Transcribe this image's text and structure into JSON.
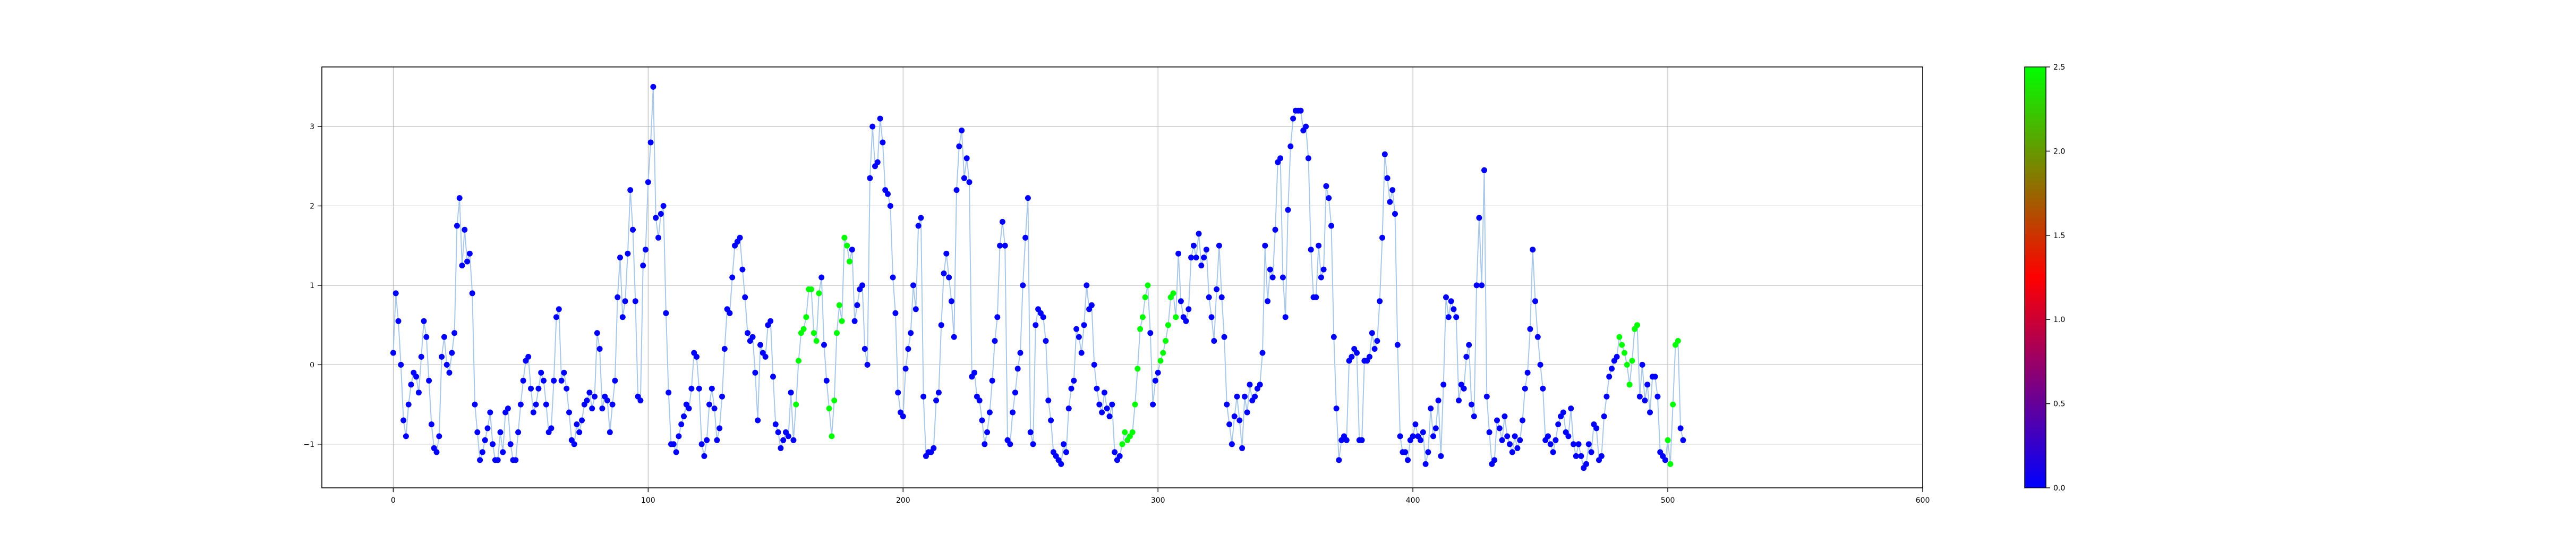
{
  "chart_data": {
    "type": "scatter",
    "title": "",
    "xlabel": "",
    "ylabel": "",
    "xlim": [
      -28,
      600
    ],
    "ylim": [
      -1.55,
      3.75
    ],
    "x_ticks": [
      0,
      100,
      200,
      300,
      400,
      500,
      600
    ],
    "y_ticks": [
      -1,
      0,
      1,
      2,
      3
    ],
    "grid": true,
    "connecting_line": true,
    "colors": {
      "line": "#a9c8e8",
      "grid": "#b0b0b0",
      "axis": "#000000"
    },
    "colorbar": {
      "min": 0.0,
      "max": 2.5,
      "ticks": [
        0.0,
        0.5,
        1.0,
        1.5,
        2.0,
        2.5
      ],
      "tick_labels": [
        "0.0",
        "0.5",
        "1.0",
        "1.5",
        "2.0",
        "2.5"
      ],
      "colormap": [
        "#0000ff",
        "#ff0000",
        "#00ff00"
      ]
    },
    "green_ranges": [
      [
        158,
        167
      ],
      [
        171,
        179
      ],
      [
        286,
        296
      ],
      [
        301,
        307
      ],
      [
        481,
        488
      ],
      [
        500,
        504
      ],
      [
        524,
        533
      ],
      [
        535,
        543
      ]
    ],
    "y": [
      0.15,
      0.9,
      0.55,
      0.0,
      -0.7,
      -0.9,
      -0.5,
      -0.25,
      -0.1,
      -0.15,
      -0.35,
      0.1,
      0.55,
      0.35,
      -0.2,
      -0.75,
      -1.05,
      -1.1,
      -0.9,
      0.1,
      0.35,
      0.0,
      -0.1,
      0.15,
      0.4,
      1.75,
      2.1,
      1.25,
      1.7,
      1.3,
      1.4,
      0.9,
      -0.5,
      -0.85,
      -1.2,
      -1.1,
      -0.95,
      -0.8,
      -0.6,
      -1.0,
      -1.2,
      -1.2,
      -0.85,
      -1.1,
      -0.6,
      -0.55,
      -1.0,
      -1.2,
      -1.2,
      -0.85,
      -0.5,
      -0.2,
      0.05,
      0.1,
      -0.3,
      -0.6,
      -0.5,
      -0.3,
      -0.1,
      -0.2,
      -0.5,
      -0.85,
      -0.8,
      -0.2,
      0.6,
      0.7,
      -0.2,
      -0.1,
      -0.3,
      -0.6,
      -0.95,
      -1.0,
      -0.75,
      -0.85,
      -0.7,
      -0.5,
      -0.45,
      -0.35,
      -0.55,
      -0.4,
      0.4,
      0.2,
      -0.55,
      -0.4,
      -0.45,
      -0.85,
      -0.5,
      -0.2,
      0.85,
      1.35,
      0.6,
      0.8,
      1.4,
      2.2,
      1.7,
      0.8,
      -0.4,
      -0.45,
      1.25,
      1.45,
      2.3,
      2.8,
      3.5,
      1.85,
      1.6,
      1.9,
      2.0,
      0.65,
      -0.35,
      -1.0,
      -1.0,
      -1.1,
      -0.9,
      -0.75,
      -0.65,
      -0.5,
      -0.55,
      -0.3,
      0.15,
      0.1,
      -0.3,
      -1.0,
      -1.15,
      -0.95,
      -0.5,
      -0.3,
      -0.55,
      -0.95,
      -0.8,
      -0.4,
      0.2,
      0.7,
      0.65,
      1.1,
      1.5,
      1.55,
      1.6,
      1.2,
      0.85,
      0.4,
      0.3,
      0.35,
      -0.1,
      -0.7,
      0.25,
      0.15,
      0.1,
      0.5,
      0.55,
      -0.15,
      -0.75,
      -0.85,
      -1.05,
      -0.95,
      -0.85,
      -0.9,
      -0.35,
      -0.95,
      -0.5,
      0.05,
      0.4,
      0.45,
      0.6,
      0.95,
      0.95,
      0.4,
      0.3,
      0.9,
      1.1,
      0.25,
      -0.2,
      -0.55,
      -0.9,
      -0.45,
      0.4,
      0.75,
      0.55,
      1.6,
      1.5,
      1.3,
      1.45,
      0.55,
      0.75,
      0.95,
      1.0,
      0.2,
      0.0,
      2.35,
      3.0,
      2.5,
      2.55,
      3.1,
      2.8,
      2.2,
      2.15,
      2.0,
      1.1,
      0.65,
      -0.35,
      -0.6,
      -0.65,
      -0.05,
      0.2,
      0.4,
      1.0,
      0.7,
      1.75,
      1.85,
      -0.4,
      -1.15,
      -1.1,
      -1.1,
      -1.05,
      -0.45,
      -0.35,
      0.5,
      1.15,
      1.4,
      1.1,
      0.8,
      0.35,
      2.2,
      2.75,
      2.95,
      2.35,
      2.6,
      2.3,
      -0.15,
      -0.1,
      -0.4,
      -0.45,
      -0.7,
      -1.0,
      -0.85,
      -0.6,
      -0.2,
      0.3,
      0.6,
      1.5,
      1.8,
      1.5,
      -0.95,
      -1.0,
      -0.6,
      -0.35,
      -0.05,
      0.15,
      1.0,
      1.6,
      2.1,
      -0.85,
      -1.0,
      0.5,
      0.7,
      0.65,
      0.6,
      0.3,
      -0.45,
      -0.7,
      -1.1,
      -1.15,
      -1.2,
      -1.25,
      -1.0,
      -1.1,
      -0.55,
      -0.3,
      -0.2,
      0.45,
      0.35,
      0.15,
      0.5,
      1.0,
      0.7,
      0.75,
      0.0,
      -0.3,
      -0.5,
      -0.6,
      -0.35,
      -0.55,
      -0.65,
      -0.5,
      -1.1,
      -1.2,
      -1.15,
      -1.0,
      -0.85,
      -0.95,
      -0.9,
      -0.85,
      -0.5,
      -0.05,
      0.45,
      0.6,
      0.85,
      1.0,
      0.4,
      -0.5,
      -0.2,
      -0.1,
      0.05,
      0.15,
      0.3,
      0.5,
      0.85,
      0.9,
      0.6,
      1.4,
      0.8,
      0.6,
      0.55,
      0.7,
      1.35,
      1.5,
      1.35,
      1.65,
      1.25,
      1.35,
      1.45,
      0.85,
      0.6,
      0.3,
      0.95,
      1.5,
      0.85,
      0.35,
      -0.5,
      -0.75,
      -1.0,
      -0.65,
      -0.4,
      -0.7,
      -1.05,
      -0.4,
      -0.6,
      -0.25,
      -0.45,
      -0.4,
      -0.3,
      -0.25,
      0.15,
      1.5,
      0.8,
      1.2,
      1.1,
      1.7,
      2.55,
      2.6,
      1.1,
      0.6,
      1.95,
      2.75,
      3.1,
      3.2,
      3.2,
      3.2,
      2.95,
      3.0,
      2.6,
      1.45,
      0.85,
      0.85,
      1.5,
      1.1,
      1.2,
      2.25,
      2.1,
      1.75,
      0.35,
      -0.55,
      -1.2,
      -0.95,
      -0.9,
      -0.95,
      0.05,
      0.1,
      0.2,
      0.15,
      -0.95,
      -0.95,
      0.05,
      0.05,
      0.1,
      0.4,
      0.2,
      0.3,
      0.8,
      1.6,
      2.65,
      2.35,
      2.05,
      2.2,
      1.9,
      0.25,
      -0.9,
      -1.1,
      -1.1,
      -1.2,
      -0.95,
      -0.9,
      -0.75,
      -0.9,
      -0.95,
      -0.85,
      -1.25,
      -1.1,
      -0.55,
      -0.9,
      -0.8,
      -0.45,
      -1.15,
      -0.25,
      0.85,
      0.6,
      0.8,
      0.7,
      0.6,
      -0.45,
      -0.25,
      -0.3,
      0.1,
      0.25,
      -0.5,
      -0.65,
      1.0,
      1.85,
      1.0,
      2.45,
      -0.4,
      -0.85,
      -1.25,
      -1.2,
      -0.7,
      -0.8,
      -0.95,
      -0.65,
      -0.9,
      -1.0,
      -1.1,
      -0.9,
      -1.05,
      -0.95,
      -0.7,
      -0.3,
      -0.1,
      0.45,
      1.45,
      0.8,
      0.35,
      0.0,
      -0.3,
      -0.95,
      -0.9,
      -1.0,
      -1.1,
      -0.95,
      -0.75,
      -0.65,
      -0.6,
      -0.85,
      -0.9,
      -0.55,
      -1.0,
      -1.15,
      -1.0,
      -1.15,
      -1.3,
      -1.25,
      -1.0,
      -1.1,
      -0.75,
      -0.8,
      -1.2,
      -1.15,
      -0.65,
      -0.4,
      -0.15,
      -0.05,
      0.05,
      0.1,
      0.35,
      0.25,
      0.15,
      0.0,
      -0.25,
      0.05,
      0.45,
      0.5,
      -0.4,
      0.0,
      -0.45,
      -0.25,
      -0.6,
      -0.15,
      -0.15,
      -0.4,
      -1.1,
      -1.15,
      -1.2,
      -0.95,
      -1.25,
      -0.5,
      0.25,
      0.3,
      -0.8,
      -0.95
    ]
  }
}
